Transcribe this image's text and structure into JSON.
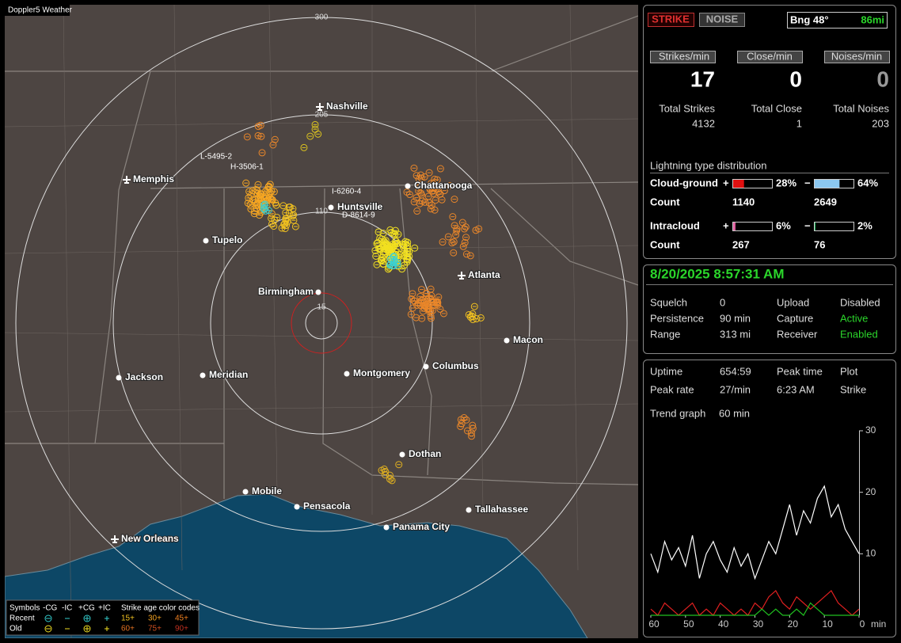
{
  "map": {
    "title": "Doppler5 Weather",
    "range_labels": [
      "300",
      "205",
      "110",
      "15"
    ],
    "cities": [
      "Nashville",
      "Memphis",
      "Chattanooga",
      "Huntsville",
      "Tupelo",
      "Atlanta",
      "Birmingham",
      "Macon",
      "Jackson",
      "Meridian",
      "Montgomery",
      "Columbus",
      "Dothan",
      "Mobile",
      "Pensacola",
      "Tallahassee",
      "Panama City",
      "New Orleans"
    ],
    "strike_labels": [
      "L-5495-2",
      "H-3506-1",
      "I-6260-4",
      "D-8614-9"
    ],
    "legend": {
      "symbols": "Symbols",
      "kinds": [
        "-CG",
        "-IC",
        "+CG",
        "+IC"
      ],
      "age_title": "Strike age color codes",
      "recent": "Recent",
      "old": "Old",
      "recent_ages": [
        "15+",
        "30+",
        "45+"
      ],
      "old_ages": [
        "60+",
        "75+",
        "90+"
      ]
    }
  },
  "status": {
    "strike": "STRIKE",
    "noise": "NOISE",
    "bearing": "Bng 48°",
    "distance": "86mi"
  },
  "rates": {
    "headers": [
      "Strikes/min",
      "Close/min",
      "Noises/min"
    ],
    "values": [
      17,
      0,
      0
    ],
    "total_labels": [
      "Total Strikes",
      "Total Close",
      "Total Noises"
    ],
    "totals": [
      4132,
      1,
      203
    ]
  },
  "distribution": {
    "title": "Lightning type distribution",
    "plus": "+",
    "minus": "−",
    "count_label": "Count",
    "rows": [
      {
        "label": "Cloud-ground",
        "pos": {
          "value": 28,
          "label": "28%"
        },
        "neg": {
          "value": 64,
          "label": "64%"
        },
        "pos_count": 1140,
        "neg_count": 2649
      },
      {
        "label": "Intracloud",
        "pos": {
          "value": 6,
          "label": "6%"
        },
        "neg": {
          "value": 2,
          "label": "2%"
        },
        "pos_count": 267,
        "neg_count": 76
      }
    ]
  },
  "clock": "8/20/2025 8:57:31 AM",
  "settings": [
    [
      "Squelch",
      "0",
      "Upload",
      "Disabled"
    ],
    [
      "Persistence",
      "90 min",
      "Capture",
      "Active"
    ],
    [
      "Range",
      "313 mi",
      "Receiver",
      "Enabled"
    ]
  ],
  "stats": [
    [
      "Uptime",
      "654:59",
      "Peak time",
      "Plot"
    ],
    [
      "Peak rate",
      "27/min",
      "6:23 AM",
      "Strike"
    ]
  ],
  "trend": {
    "label": "Trend graph",
    "value": "60 min"
  },
  "chart_data": {
    "type": "line",
    "x_label": "min",
    "x": [
      60,
      58,
      56,
      54,
      52,
      50,
      48,
      46,
      44,
      42,
      40,
      38,
      36,
      34,
      32,
      30,
      28,
      26,
      24,
      22,
      20,
      18,
      16,
      14,
      12,
      10,
      8,
      6,
      4,
      2,
      0
    ],
    "xlim": [
      60,
      0
    ],
    "xticks": [
      60,
      50,
      40,
      30,
      20,
      10,
      0
    ],
    "ylim": [
      0,
      30
    ],
    "yticks": [
      10,
      20,
      30
    ],
    "series": [
      {
        "color": "#ffffff",
        "values": [
          10,
          7,
          12,
          9,
          11,
          8,
          13,
          6,
          10,
          12,
          9,
          7,
          11,
          8,
          10,
          6,
          9,
          12,
          10,
          14,
          18,
          13,
          17,
          15,
          19,
          21,
          16,
          18,
          14,
          12,
          10
        ]
      },
      {
        "color": "#e02020",
        "values": [
          1,
          0,
          2,
          1,
          0,
          1,
          2,
          0,
          1,
          0,
          2,
          1,
          0,
          1,
          0,
          2,
          1,
          3,
          4,
          2,
          1,
          3,
          2,
          1,
          2,
          3,
          4,
          2,
          1,
          0,
          1
        ]
      },
      {
        "color": "#20c020",
        "values": [
          0,
          0,
          0,
          0,
          0,
          0,
          0,
          0,
          0,
          0,
          0,
          0,
          0,
          0,
          0,
          0,
          1,
          0,
          1,
          0,
          0,
          1,
          0,
          2,
          1,
          0,
          0,
          0,
          0,
          0,
          0
        ]
      }
    ]
  }
}
